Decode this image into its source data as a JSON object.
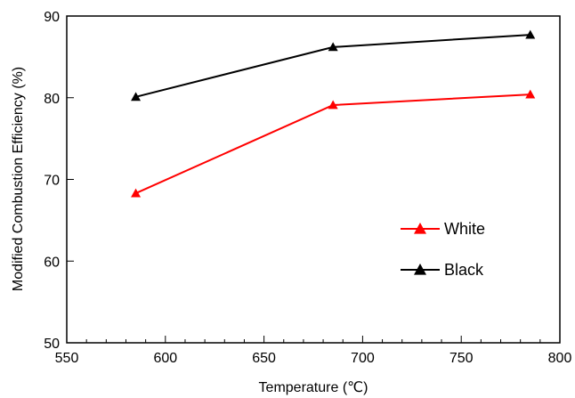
{
  "chart_data": {
    "type": "line",
    "xlabel": "Temperature (℃)",
    "ylabel": "Modified Combustion Efficiency (%)",
    "xlim": [
      550,
      800
    ],
    "ylim": [
      50,
      90
    ],
    "xticks": [
      550,
      600,
      650,
      700,
      750,
      800
    ],
    "yticks": [
      50,
      60,
      70,
      80,
      90
    ],
    "x_minor_step": 10,
    "grid": false,
    "legend_position": "lower-right",
    "series": [
      {
        "name": "White",
        "color": "#ff0000",
        "marker": "triangle",
        "x": [
          585,
          685,
          785
        ],
        "y": [
          68.3,
          79.1,
          80.4
        ]
      },
      {
        "name": "Black",
        "color": "#000000",
        "marker": "triangle",
        "x": [
          585,
          685,
          785
        ],
        "y": [
          80.1,
          86.2,
          87.7
        ]
      }
    ]
  }
}
